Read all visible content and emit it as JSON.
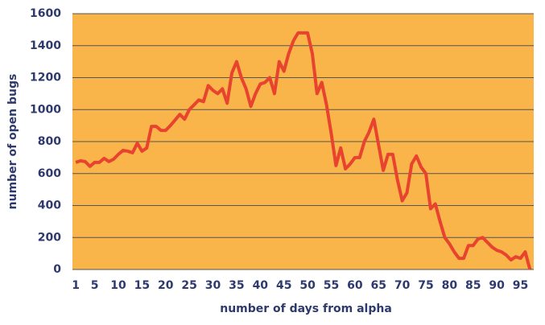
{
  "chart_data": {
    "type": "line",
    "xlabel": "number of days from alpha",
    "ylabel": "number of open bugs",
    "x": [
      1,
      2,
      3,
      4,
      5,
      6,
      7,
      8,
      9,
      10,
      11,
      12,
      13,
      14,
      15,
      16,
      17,
      18,
      19,
      20,
      21,
      22,
      23,
      24,
      25,
      26,
      27,
      28,
      29,
      30,
      31,
      32,
      33,
      34,
      35,
      36,
      37,
      38,
      39,
      40,
      41,
      42,
      43,
      44,
      45,
      46,
      47,
      48,
      49,
      50,
      51,
      52,
      53,
      54,
      55,
      56,
      57,
      58,
      59,
      60,
      61,
      62,
      63,
      64,
      65,
      66,
      67,
      68,
      69,
      70,
      71,
      72,
      73,
      74,
      75,
      76,
      77,
      78,
      79,
      80,
      81,
      82,
      83,
      84,
      85,
      86,
      87,
      88,
      89,
      90,
      91,
      92,
      93,
      94,
      95,
      96,
      97
    ],
    "series": [
      {
        "name": "open bugs",
        "color": "#e8432e",
        "values": [
          670,
          680,
          675,
          645,
          670,
          670,
          695,
          675,
          690,
          720,
          745,
          740,
          730,
          790,
          740,
          760,
          895,
          895,
          870,
          870,
          900,
          935,
          970,
          940,
          1000,
          1030,
          1060,
          1050,
          1150,
          1120,
          1100,
          1130,
          1040,
          1230,
          1300,
          1200,
          1130,
          1020,
          1100,
          1160,
          1170,
          1200,
          1100,
          1300,
          1240,
          1350,
          1430,
          1480,
          1480,
          1480,
          1350,
          1100,
          1170,
          1030,
          850,
          650,
          760,
          630,
          660,
          700,
          700,
          800,
          860,
          940,
          780,
          620,
          720,
          720,
          560,
          430,
          480,
          660,
          710,
          640,
          600,
          380,
          410,
          300,
          200,
          160,
          110,
          70,
          70,
          150,
          150,
          190,
          200,
          170,
          140,
          120,
          110,
          90,
          60,
          80,
          70,
          110,
          0
        ]
      }
    ],
    "xlim": [
      0.3,
      97.8
    ],
    "xticks": [
      1,
      5,
      10,
      15,
      20,
      25,
      30,
      35,
      40,
      45,
      50,
      55,
      60,
      65,
      70,
      75,
      80,
      85,
      90,
      95
    ],
    "ylim": [
      0,
      1600
    ],
    "yticks": [
      0,
      200,
      400,
      600,
      800,
      1000,
      1200,
      1400,
      1600
    ],
    "grid": true
  }
}
